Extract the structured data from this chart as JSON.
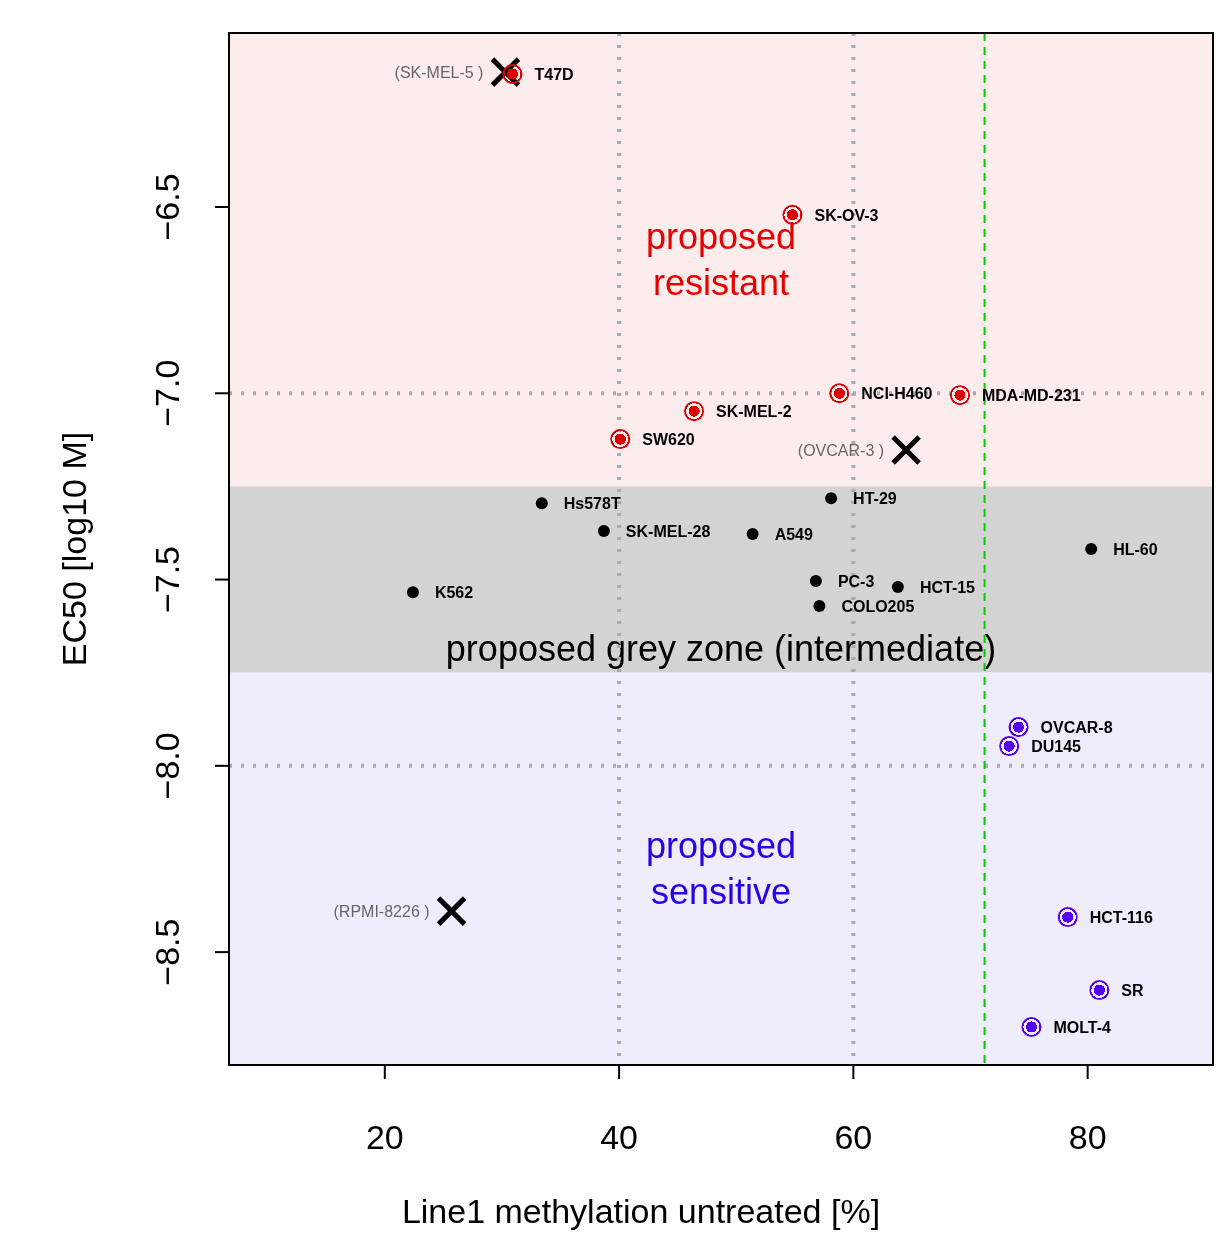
{
  "chart_data": {
    "type": "scatter",
    "xlabel": "Line1 methylation untreated [%]",
    "ylabel": "EC50 [log10 M]",
    "xlim": [
      6.7,
      90.7
    ],
    "ylim": [
      -8.803,
      -6.033
    ],
    "xticks": [
      20,
      40,
      60,
      80
    ],
    "yticks": [
      {
        "value": -6.5,
        "label": "−6.5"
      },
      {
        "value": -7,
        "label": "−7.0"
      },
      {
        "value": -7.5,
        "label": "−7.5"
      },
      {
        "value": -8,
        "label": "−8.0"
      },
      {
        "value": -8.5,
        "label": "−8.5"
      }
    ],
    "bands": [
      {
        "axis": "y",
        "from": -7.25,
        "to": -6.033,
        "label": "proposed\nresistant",
        "color": "#fdecec"
      },
      {
        "axis": "y",
        "from": -7.75,
        "to": -7.25,
        "label": "proposed grey zone (intermediate)",
        "color": "#d3d3d3"
      },
      {
        "axis": "y",
        "from": -8.803,
        "to": -7.75,
        "label": "proposed\nsensitive",
        "color": "#efecfc"
      }
    ],
    "ref_lines": [
      {
        "axis": "x",
        "value": 40,
        "color": "#aaaaaa",
        "line_style": "dotted"
      },
      {
        "axis": "x",
        "value": 60,
        "color": "#aaaaaa",
        "line_style": "dotted"
      },
      {
        "axis": "y",
        "value": -7,
        "color": "#aaaaaa",
        "line_style": "dotted"
      },
      {
        "axis": "y",
        "value": -8,
        "color": "#aaaaaa",
        "line_style": "dotted"
      },
      {
        "axis": "x",
        "value": 71.2,
        "color": "#00cc00",
        "line_style": "dashed"
      }
    ],
    "series": [
      {
        "color": "#dd0000",
        "marker": "circle",
        "x": [
          30.9,
          54.8,
          58.8,
          69.1,
          46.4,
          40.1
        ],
        "values": [
          -6.143,
          -6.521,
          -7.0,
          -7.005,
          -7.048,
          -7.123
        ],
        "value_labels": [
          "T47D",
          "SK-OV-3",
          "NCI-H460",
          "MDA-MD-231",
          "SK-MEL-2",
          "SW620"
        ]
      },
      {
        "color": "#000000",
        "marker": "circle",
        "x": [
          33.4,
          38.7,
          51.4,
          58.1,
          80.3,
          56.8,
          63.8,
          57.1,
          22.4
        ],
        "values": [
          -7.295,
          -7.37,
          -7.378,
          -7.282,
          -7.418,
          -7.504,
          -7.52,
          -7.571,
          -7.534
        ],
        "value_labels": [
          "Hs578T",
          "SK-MEL-28",
          "A549",
          "HT-29",
          "HL-60",
          "PC-3",
          "HCT-15",
          "COLO205",
          "K562"
        ]
      },
      {
        "color": "#5500ee",
        "marker": "circle",
        "x": [
          74.1,
          73.3,
          78.3,
          81.0,
          75.2
        ],
        "values": [
          -7.896,
          -7.947,
          -8.406,
          -8.602,
          -8.701
        ],
        "value_labels": [
          "OVCAR-8",
          "DU145",
          "HCT-116",
          "SR",
          "MOLT-4"
        ]
      },
      {
        "color": "#000000",
        "marker": "cross",
        "x": [
          30.3,
          64.5,
          25.7
        ],
        "values": [
          -6.138,
          -7.152,
          -8.39
        ],
        "value_labels": [
          "(SK-MEL-5 )",
          "(OVCAR-3 )",
          "(RPMI-8226 )"
        ]
      }
    ]
  }
}
